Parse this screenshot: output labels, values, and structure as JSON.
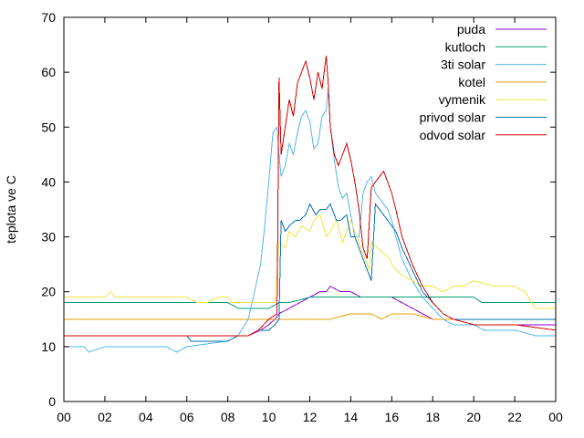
{
  "chart_data": {
    "type": "line",
    "title": "",
    "xlabel": "",
    "ylabel": "teplota ve C",
    "xlim": [
      0,
      24
    ],
    "ylim": [
      0,
      70
    ],
    "x_ticks": [
      "00",
      "02",
      "04",
      "06",
      "08",
      "10",
      "12",
      "14",
      "16",
      "18",
      "20",
      "22",
      "00"
    ],
    "y_ticks": [
      "0",
      "10",
      "20",
      "30",
      "40",
      "50",
      "60",
      "70"
    ],
    "legend_position": "top-right",
    "grid": false,
    "series": [
      {
        "name": "puda",
        "color": "#9400d3",
        "x": [
          0,
          9,
          9.6,
          10,
          10.3,
          10.5,
          11,
          11.5,
          12,
          12.5,
          12.8,
          13,
          13.5,
          14,
          14.5,
          15,
          15.5,
          16,
          16.5,
          17,
          17.5,
          18,
          18.5,
          19,
          20,
          22,
          24
        ],
        "y": [
          12,
          12,
          13,
          14,
          15,
          16,
          17,
          18,
          19,
          20,
          20,
          21,
          20,
          20,
          19,
          19,
          19,
          19,
          18,
          17,
          16,
          15,
          15,
          14,
          14,
          14,
          14
        ]
      },
      {
        "name": "kutloch",
        "color": "#009e73",
        "x": [
          0,
          6,
          8,
          8.5,
          9,
          10,
          10.5,
          11,
          12,
          13,
          14,
          16,
          18,
          20,
          20.4,
          20.6,
          22,
          24
        ],
        "y": [
          18,
          18,
          18,
          17,
          17,
          17,
          18,
          18,
          19,
          19,
          19,
          19,
          19,
          19,
          18,
          18,
          18,
          18
        ]
      },
      {
        "name": "3ti solar",
        "color": "#56b4e9",
        "x": [
          0,
          1,
          1.2,
          2,
          5,
          5.5,
          6,
          8,
          8.5,
          9,
          9.3,
          9.6,
          9.8,
          10,
          10.2,
          10.4,
          10.5,
          10.6,
          10.8,
          11,
          11.2,
          11.4,
          11.6,
          11.8,
          12,
          12.2,
          12.4,
          12.6,
          12.8,
          12.9,
          13,
          13.2,
          13.4,
          13.6,
          13.8,
          14,
          14.2,
          14.4,
          14.6,
          14.8,
          15,
          15.2,
          15.4,
          15.6,
          15.8,
          16,
          16.2,
          16.5,
          17,
          17.5,
          18,
          18.5,
          19,
          20,
          20.5,
          21,
          22,
          23,
          24
        ],
        "y": [
          10,
          10,
          9,
          10,
          10,
          9,
          10,
          11,
          12,
          15,
          20,
          25,
          32,
          40,
          49,
          50,
          45,
          41,
          43,
          47,
          45,
          49,
          52,
          53,
          51,
          46,
          47,
          52,
          53,
          57,
          50,
          44,
          39,
          37,
          38,
          34,
          30,
          30,
          38,
          40,
          41,
          38,
          37,
          36,
          35,
          33,
          30,
          26,
          22,
          19,
          17,
          15,
          14,
          14,
          13,
          13,
          13,
          12,
          12
        ]
      },
      {
        "name": "kotel",
        "color": "#e69f00",
        "x": [
          0,
          9.7,
          12,
          13,
          14,
          15,
          15.5,
          16,
          17,
          18,
          19,
          24
        ],
        "y": [
          15,
          15,
          15,
          15,
          16,
          16,
          15,
          16,
          16,
          15,
          15,
          15
        ]
      },
      {
        "name": "vymenik",
        "color": "#f0e442",
        "x": [
          0,
          2,
          2.3,
          2.5,
          6,
          6.5,
          7,
          7.5,
          8,
          8.2,
          8.5,
          9,
          10,
          10.3,
          10.5,
          10.8,
          11,
          11.3,
          11.6,
          12,
          12.2,
          12.5,
          12.8,
          13,
          13.3,
          13.6,
          14,
          14.3,
          14.6,
          14.9,
          15,
          15.3,
          15.6,
          15.9,
          16,
          16.2,
          16.5,
          17,
          17.5,
          18,
          18.5,
          19,
          19.5,
          20,
          21,
          22,
          22.5,
          23,
          24
        ],
        "y": [
          19,
          19,
          20,
          19,
          19,
          18,
          18,
          19,
          19,
          18,
          18,
          18,
          18,
          18,
          29,
          28,
          31,
          30,
          32,
          31,
          33,
          34,
          30,
          31,
          33,
          29,
          33,
          30,
          27,
          24,
          29,
          28,
          27,
          26,
          25,
          24,
          23,
          22,
          21,
          21,
          20,
          21,
          21,
          22,
          21,
          21,
          20,
          17,
          17
        ]
      },
      {
        "name": "privod solar",
        "color": "#0072b2",
        "x": [
          0,
          6,
          6.2,
          8,
          8.5,
          9,
          9.5,
          10,
          10.3,
          10.5,
          10.6,
          10.8,
          11,
          11.3,
          11.5,
          11.8,
          12,
          12.3,
          12.5,
          12.8,
          13,
          13.3,
          13.5,
          13.8,
          14,
          14.2,
          14.5,
          14.8,
          15,
          15.2,
          15.4,
          15.6,
          15.8,
          16,
          16.2,
          16.5,
          17,
          17.5,
          18,
          18.5,
          19,
          20,
          22,
          24
        ],
        "y": [
          12,
          12,
          11,
          11,
          12,
          12,
          13,
          13,
          14,
          15,
          33,
          31,
          32,
          33,
          33,
          34,
          36,
          34,
          35,
          35,
          36,
          33,
          33,
          34,
          30,
          30,
          27,
          24,
          22,
          36,
          35,
          34,
          33,
          32,
          31,
          28,
          24,
          20,
          18,
          16,
          15,
          15,
          15,
          15
        ]
      },
      {
        "name": "odvod solar",
        "color": "#d00000",
        "x": [
          0,
          9,
          9.5,
          10,
          10.4,
          10.5,
          10.6,
          10.8,
          11,
          11.2,
          11.4,
          11.6,
          11.8,
          12,
          12.2,
          12.4,
          12.6,
          12.8,
          12.9,
          13,
          13.2,
          13.4,
          13.6,
          13.8,
          14,
          14.2,
          14.4,
          14.6,
          14.8,
          15,
          15.2,
          15.4,
          15.6,
          15.8,
          16,
          16.2,
          16.5,
          17,
          17.5,
          18,
          18.5,
          19,
          20,
          22,
          24
        ],
        "y": [
          12,
          12,
          13,
          15,
          16,
          59,
          45,
          50,
          55,
          52,
          58,
          60,
          62,
          59,
          55,
          60,
          57,
          63,
          58,
          50,
          45,
          43,
          45,
          47,
          44,
          40,
          35,
          28,
          26,
          39,
          40,
          41,
          42,
          40,
          38,
          35,
          30,
          25,
          21,
          18,
          16,
          15,
          14,
          14,
          13
        ]
      }
    ]
  }
}
